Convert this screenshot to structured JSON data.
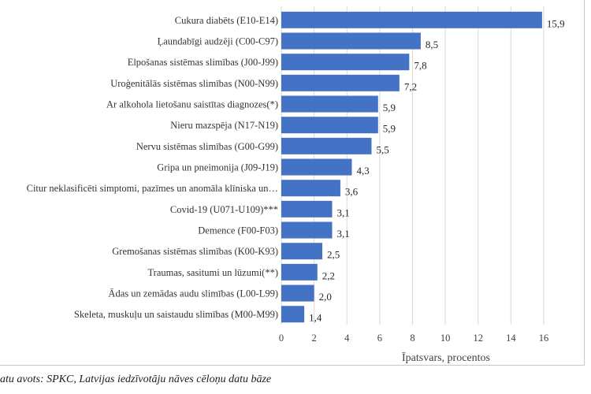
{
  "chart_data": {
    "type": "bar",
    "orientation": "horizontal",
    "categories": [
      "Cukura diabēts (E10-E14)",
      "Ļaundabīgi audzēji (C00-C97)",
      "Elpošanas sistēmas slimības (J00-J99)",
      "Uroģenitālās sistēmas slimības (N00-N99)",
      "Ar alkohola lietošanu saistītas diagnozes(*)",
      "Nieru mazspēja (N17-N19)",
      "Nervu sistēmas slimības (G00-G99)",
      "Gripa un pneimonija (J09-J19)",
      "Citur neklasificēti simptomi, pazīmes un anomāla klīniska un…",
      "Covid-19 (U071-U109)***",
      "Demence (F00-F03)",
      "Gremošanas sistēmas slimības (K00-K93)",
      "Traumas, sasitumi un lūzumi(**)",
      "Ādas un zemādas audu slimības (L00-L99)",
      "Skeleta, muskuļu un saistaudu slimības (M00-M99)"
    ],
    "values": [
      15.9,
      8.5,
      7.8,
      7.2,
      5.9,
      5.9,
      5.5,
      4.3,
      3.6,
      3.1,
      3.1,
      2.5,
      2.2,
      2.0,
      1.4
    ],
    "value_labels": [
      "15,9",
      "8,5",
      "7,8",
      "7,2",
      "5,9",
      "5,9",
      "5,5",
      "4,3",
      "3,6",
      "3,1",
      "3,1",
      "2,5",
      "2,2",
      "2,0",
      "1,4"
    ],
    "xlabel": "Īpatsvars, procentos",
    "ylabel": "",
    "xlim": [
      0,
      16
    ],
    "xticks": [
      0,
      2,
      4,
      6,
      8,
      10,
      12,
      14,
      16
    ],
    "grid": "vertical",
    "bar_color": "#4472c4"
  },
  "source_note": "atu avots: SPKC, Latvijas iedzīvotāju nāves cēloņu datu bāze"
}
